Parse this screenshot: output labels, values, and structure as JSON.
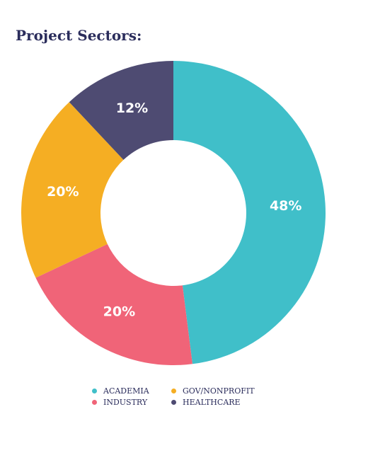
{
  "title": "Project Sectors:",
  "chart_data": {
    "type": "pie",
    "variant": "donut",
    "categories": [
      "ACADEMIA",
      "INDUSTRY",
      "GOV/NONPROFIT",
      "HEALTHCARE"
    ],
    "values": [
      48,
      20,
      20,
      12
    ],
    "labels": [
      "48%",
      "20%",
      "20%",
      "12%"
    ],
    "colors": [
      "#40bfc9",
      "#f06478",
      "#f5ae23",
      "#4e4b72"
    ],
    "legend_position": "bottom",
    "legend": [
      {
        "label": "ACADEMIA",
        "color": "#40bfc9"
      },
      {
        "label": "GOV/NONPROFIT",
        "color": "#f5ae23"
      },
      {
        "label": "INDUSTRY",
        "color": "#f06478"
      },
      {
        "label": "HEALTHCARE",
        "color": "#4e4b72"
      }
    ]
  }
}
